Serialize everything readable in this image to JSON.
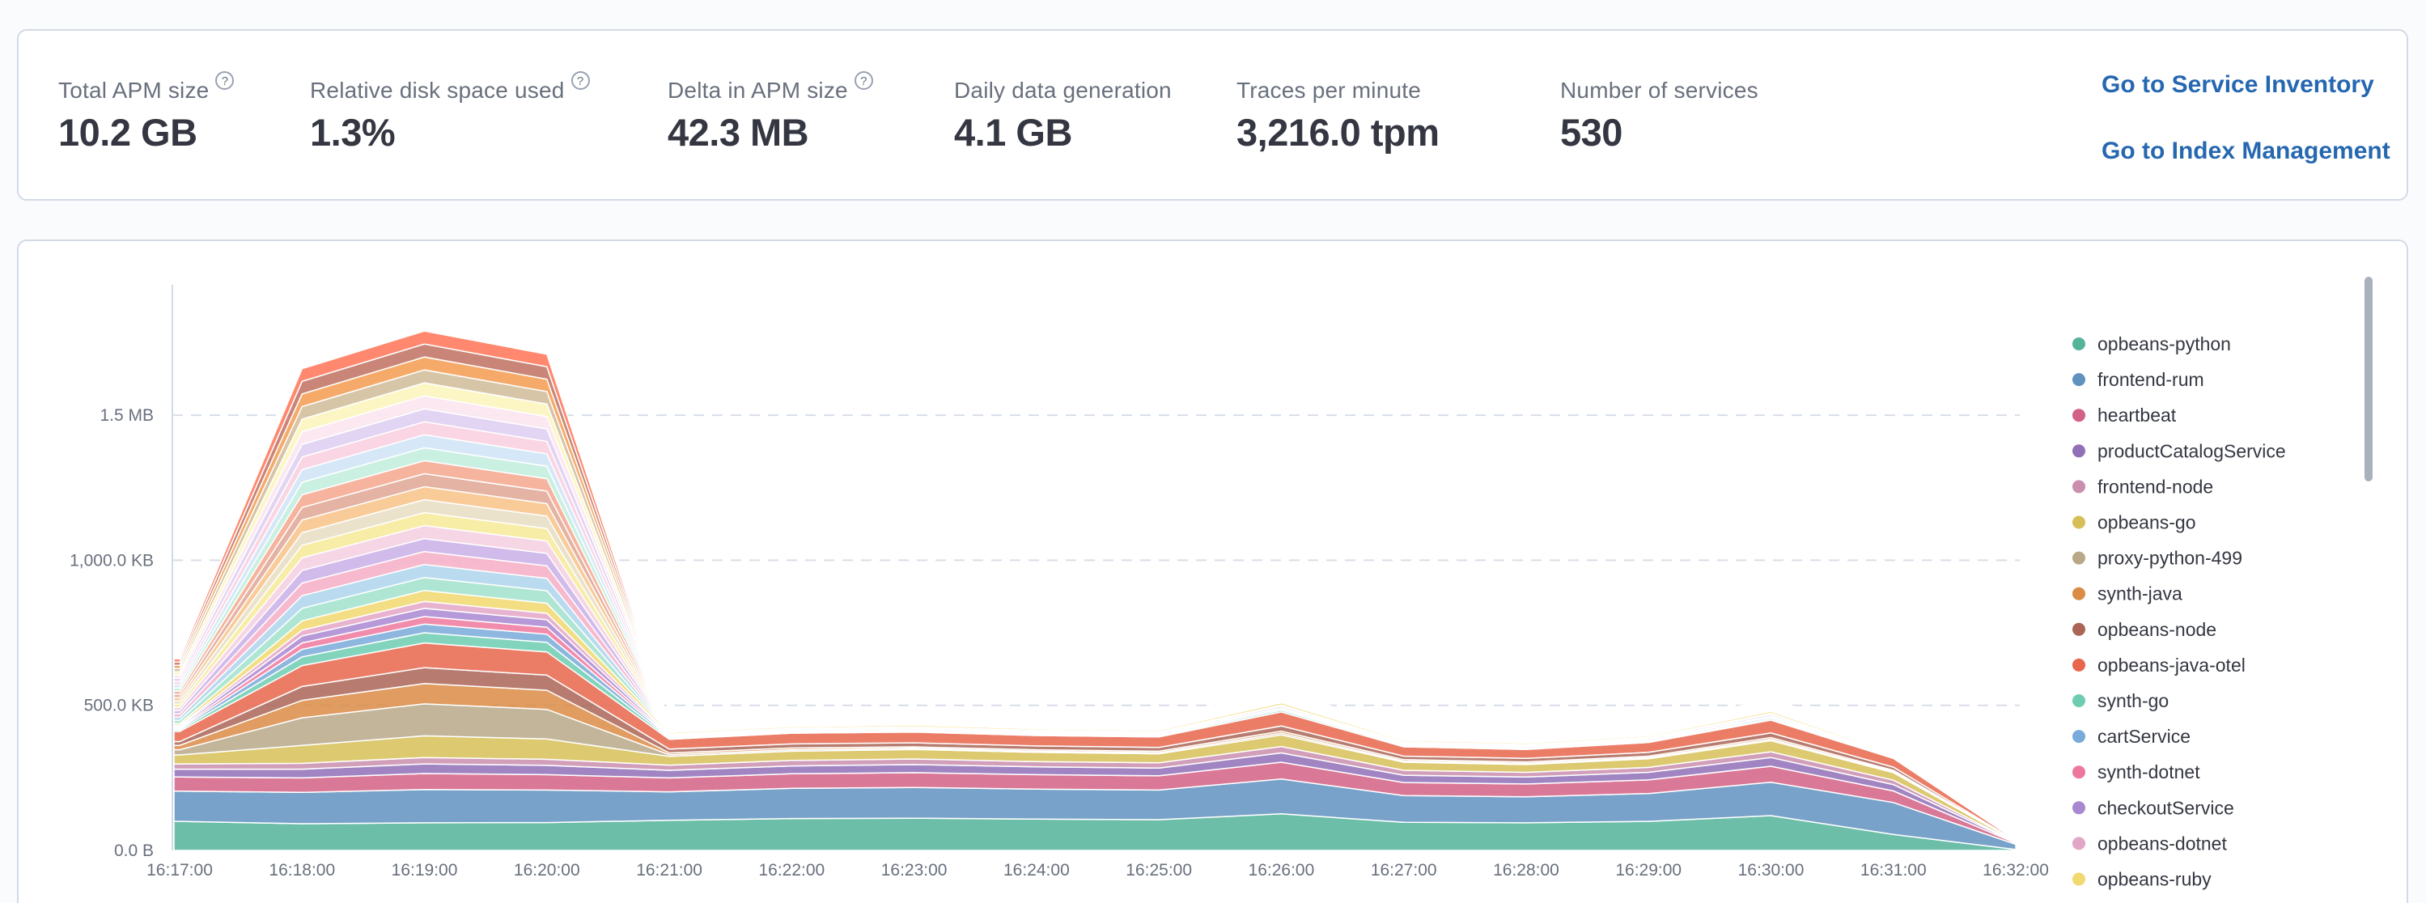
{
  "icons": {
    "help": "?"
  },
  "stats_panel": {
    "stats": [
      {
        "label": "Total APM size",
        "value": "10.2 GB",
        "has_help_icon": true
      },
      {
        "label": "Relative disk space used",
        "value": "1.3%",
        "has_help_icon": true
      },
      {
        "label": "Delta in APM size",
        "value": "42.3 MB",
        "has_help_icon": true
      },
      {
        "label": "Daily data generation",
        "value": "4.1 GB",
        "has_help_icon": false
      },
      {
        "label": "Traces per minute",
        "value": "3,216.0 tpm",
        "has_help_icon": false
      },
      {
        "label": "Number of services",
        "value": "530",
        "has_help_icon": false
      }
    ],
    "links": [
      {
        "label": "Go to Service Inventory"
      },
      {
        "label": "Go to Index Management"
      }
    ],
    "link_color": "#2567b0"
  },
  "chart_data": {
    "type": "area",
    "stacked": true,
    "unit": "KB",
    "grid": "dashed horizontal",
    "legend_position": "right",
    "x": [
      "16:17:00",
      "16:18:00",
      "16:19:00",
      "16:20:00",
      "16:21:00",
      "16:22:00",
      "16:23:00",
      "16:24:00",
      "16:25:00",
      "16:26:00",
      "16:27:00",
      "16:28:00",
      "16:29:00",
      "16:30:00",
      "16:31:00",
      "16:32:00"
    ],
    "y_axis_ticks": [
      {
        "label": "0.0 B",
        "kb": 0
      },
      {
        "label": "500.0 KB",
        "kb": 500
      },
      {
        "label": "1,000.0 KB",
        "kb": 1000
      },
      {
        "label": "1.5 MB",
        "kb": 1500
      }
    ],
    "ylim_kb": [
      0,
      1950
    ],
    "series": [
      {
        "name": "opbeans-python",
        "color": "#54B399",
        "values_kb": [
          100,
          92,
          95,
          96,
          104,
          110,
          111,
          108,
          106,
          126,
          97,
          95,
          100,
          120,
          55,
          3
        ]
      },
      {
        "name": "frontend-rum",
        "color": "#6092C0",
        "values_kb": [
          104,
          108,
          115,
          112,
          98,
          104,
          106,
          103,
          102,
          120,
          92,
          90,
          96,
          115,
          110,
          18
        ]
      },
      {
        "name": "heartbeat",
        "color": "#D36086",
        "values_kb": [
          49,
          50,
          55,
          53,
          48,
          50,
          51,
          50,
          49,
          58,
          45,
          44,
          47,
          55,
          40,
          4
        ]
      },
      {
        "name": "productCatalogService",
        "color": "#9170B8",
        "values_kb": [
          27,
          30,
          33,
          32,
          26,
          27,
          28,
          27,
          27,
          32,
          25,
          24,
          26,
          30,
          22,
          2
        ]
      },
      {
        "name": "frontend-node",
        "color": "#CA8EAE",
        "values_kb": [
          18,
          20,
          22,
          21,
          18,
          19,
          19,
          18,
          18,
          22,
          17,
          16,
          17,
          20,
          15,
          1.5
        ]
      },
      {
        "name": "opbeans-go",
        "color": "#D6BF57",
        "values_kb": [
          31,
          62,
          75,
          70,
          30,
          32,
          33,
          32,
          31,
          40,
          28,
          27,
          30,
          38,
          26,
          2.5
        ]
      },
      {
        "name": "proxy-python-499",
        "color": "#B9A888",
        "values_kb": [
          18,
          95,
          110,
          102,
          6,
          5,
          4,
          4,
          4,
          6,
          4,
          4,
          4,
          5,
          4,
          0.5
        ]
      },
      {
        "name": "synth-java",
        "color": "#DA8B45",
        "values_kb": [
          15,
          60,
          70,
          66,
          6,
          6,
          5,
          5,
          5,
          7,
          5,
          5,
          5,
          6,
          4,
          0.5
        ]
      },
      {
        "name": "opbeans-node",
        "color": "#AA6556",
        "values_kb": [
          13,
          48,
          55,
          52,
          13,
          14,
          14,
          13,
          13,
          18,
          12,
          12,
          13,
          16,
          11,
          1
        ]
      },
      {
        "name": "opbeans-java-otel",
        "color": "#E7664C",
        "values_kb": [
          35,
          72,
          85,
          80,
          34,
          37,
          37,
          36,
          36,
          48,
          32,
          31,
          34,
          44,
          30,
          3
        ]
      },
      {
        "name": "synth-go",
        "color": "#6DCCB1",
        "values_kb": [
          5,
          30,
          35,
          33,
          4,
          4,
          4,
          4,
          4,
          6,
          4,
          4,
          4,
          5,
          3,
          0.4
        ]
      },
      {
        "name": "cartService",
        "color": "#79AAD9",
        "values_kb": [
          4.5,
          26,
          30,
          28,
          4,
          4,
          4,
          4,
          4,
          5,
          3.5,
          3.5,
          4,
          5,
          3,
          0.4
        ]
      },
      {
        "name": "synth-dotnet",
        "color": "#EE789D",
        "values_kb": [
          3.5,
          22,
          26,
          24,
          3,
          3,
          3,
          3,
          3,
          4,
          3,
          3,
          3,
          4,
          2.5,
          0.3
        ]
      },
      {
        "name": "checkoutService",
        "color": "#A987D1",
        "values_kb": [
          4.5,
          24,
          28,
          26,
          4,
          4,
          4,
          4,
          4,
          5,
          3.5,
          3.5,
          4,
          5,
          3,
          0.4
        ]
      },
      {
        "name": "opbeans-dotnet",
        "color": "#E4A6C7",
        "values_kb": [
          3.5,
          20,
          24,
          22,
          3,
          3,
          3,
          3,
          3,
          4,
          3,
          3,
          3,
          4,
          2.5,
          0.3
        ]
      },
      {
        "name": "opbeans-ruby",
        "color": "#F1D86F",
        "values_kb": [
          6,
          32,
          38,
          35,
          5,
          5,
          6,
          5,
          5,
          8,
          5,
          5,
          5,
          7,
          4,
          0.5
        ]
      }
    ],
    "unlabeled_remainder": {
      "values_kb": [
        223,
        869,
        894,
        858,
        34,
        33,
        10,
        15,
        30,
        55,
        20,
        18,
        25,
        45,
        40,
        2
      ],
      "render_slice_count": 20,
      "slice_colors": [
        "#A8E4CF",
        "#B4D8EE",
        "#F6B3CA",
        "#CDB5E9",
        "#F5D3E3",
        "#F7EC9F",
        "#E9DFC8",
        "#F9C78F",
        "#E2AC9C",
        "#F5AC95",
        "#C6EFDF",
        "#D3E6F7",
        "#FAD3E2",
        "#E0D0F2",
        "#FBE6F0",
        "#FCF5C0",
        "#D2C0A0",
        "#F5A35C",
        "#C47C6C",
        "#FF7E62"
      ]
    },
    "axis_text_color": "#69707d",
    "legend_text_color": "#343741",
    "gridline_color": "#d8dee9"
  }
}
